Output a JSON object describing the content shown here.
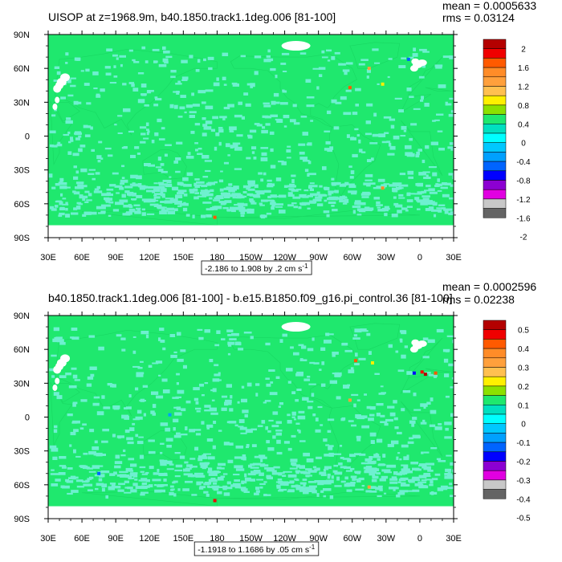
{
  "colors": {
    "ocean_land_fill": "#1fe86e",
    "stipple": "#6ef0d0",
    "ice": "#ffffff",
    "band": "#ffffff",
    "border": "#000000"
  },
  "chart_data": [
    {
      "type": "heatmap",
      "title": "UISOP at z=1968.9m, b40.1850.track1.1deg.006 [81-100]",
      "stats": {
        "mean": "mean = 0.0005633",
        "rms": "rms = 0.03124"
      },
      "x_ticks": [
        "30E",
        "60E",
        "90E",
        "120E",
        "150E",
        "180",
        "150W",
        "120W",
        "90W",
        "60W",
        "30W",
        "0",
        "30E"
      ],
      "y_ticks": [
        "90N",
        "60N",
        "30N",
        "0",
        "30S",
        "60S",
        "90S"
      ],
      "ylim": [
        -90,
        90
      ],
      "range_label": "-2.186 to 1.908 by .2 cm s",
      "units_sup": "-1",
      "colorbar": {
        "labels": [
          "2",
          "1.6",
          "1.2",
          "0.8",
          "0.4",
          "0",
          "-0.4",
          "-0.8",
          "-1.2",
          "-1.6",
          "-2"
        ],
        "colors": [
          "#b40000",
          "#f00000",
          "#ff5a00",
          "#ff8c28",
          "#ffa03c",
          "#ffc050",
          "#fff000",
          "#8ce100",
          "#1fe86e",
          "#00e0c0",
          "#00ffff",
          "#00c8ff",
          "#00a0ff",
          "#0064ff",
          "#0000ff",
          "#8c00d2",
          "#e100e1",
          "#c8c8c8",
          "#646464"
        ]
      },
      "hotspots": [
        {
          "lon": -45,
          "lat": 60,
          "color": "#ffa03c"
        },
        {
          "lon": -33,
          "lat": 46,
          "color": "#fff000"
        },
        {
          "lon": -62,
          "lat": 43,
          "color": "#ff5a00"
        },
        {
          "lon": -33,
          "lat": -46,
          "color": "#ff8c28"
        },
        {
          "lon": 178,
          "lat": -72,
          "color": "#ff5a00"
        },
        {
          "lon": -10,
          "lat": 68,
          "color": "#0064ff"
        }
      ]
    },
    {
      "type": "heatmap",
      "title": "b40.1850.track1.1deg.006 [81-100] - b.e15.B1850.f09_g16.pi_control.36 [81-100]",
      "stats": {
        "mean": "mean = 0.0002596",
        "rms": "rms = 0.02238"
      },
      "x_ticks": [
        "30E",
        "60E",
        "90E",
        "120E",
        "150E",
        "180",
        "150W",
        "120W",
        "90W",
        "60W",
        "30W",
        "0",
        "30E"
      ],
      "y_ticks": [
        "90N",
        "60N",
        "30N",
        "0",
        "30S",
        "60S",
        "90S"
      ],
      "ylim": [
        -90,
        90
      ],
      "range_label": "-1.1918 to 1.1686 by .05 cm s",
      "units_sup": "-1",
      "colorbar": {
        "labels": [
          "0.5",
          "0.4",
          "0.3",
          "0.2",
          "0.1",
          "0",
          "-0.1",
          "-0.2",
          "-0.3",
          "-0.4",
          "-0.5"
        ],
        "colors": [
          "#b40000",
          "#f00000",
          "#ff5a00",
          "#ff8c28",
          "#ffa03c",
          "#ffc050",
          "#fff000",
          "#8ce100",
          "#1fe86e",
          "#00e0c0",
          "#00ffff",
          "#00c8ff",
          "#00a0ff",
          "#0064ff",
          "#0000ff",
          "#8c00d2",
          "#e100e1",
          "#c8c8c8",
          "#646464"
        ]
      },
      "hotspots": [
        {
          "lon": -42,
          "lat": 48,
          "color": "#fff000"
        },
        {
          "lon": 2,
          "lat": 40,
          "color": "#f00000"
        },
        {
          "lon": 5,
          "lat": 38,
          "color": "#b40000"
        },
        {
          "lon": -5,
          "lat": 39,
          "color": "#0000ff"
        },
        {
          "lon": 14,
          "lat": 39,
          "color": "#ff5a00"
        },
        {
          "lon": -62,
          "lat": 15,
          "color": "#ffa03c"
        },
        {
          "lon": -57,
          "lat": 50,
          "color": "#ff5a00"
        },
        {
          "lon": -45,
          "lat": -62,
          "color": "#ffa03c"
        },
        {
          "lon": 178,
          "lat": -74,
          "color": "#f00000"
        },
        {
          "lon": 75,
          "lat": -50,
          "color": "#0064ff"
        },
        {
          "lon": 138,
          "lat": 2,
          "color": "#00a0ff"
        }
      ]
    }
  ]
}
